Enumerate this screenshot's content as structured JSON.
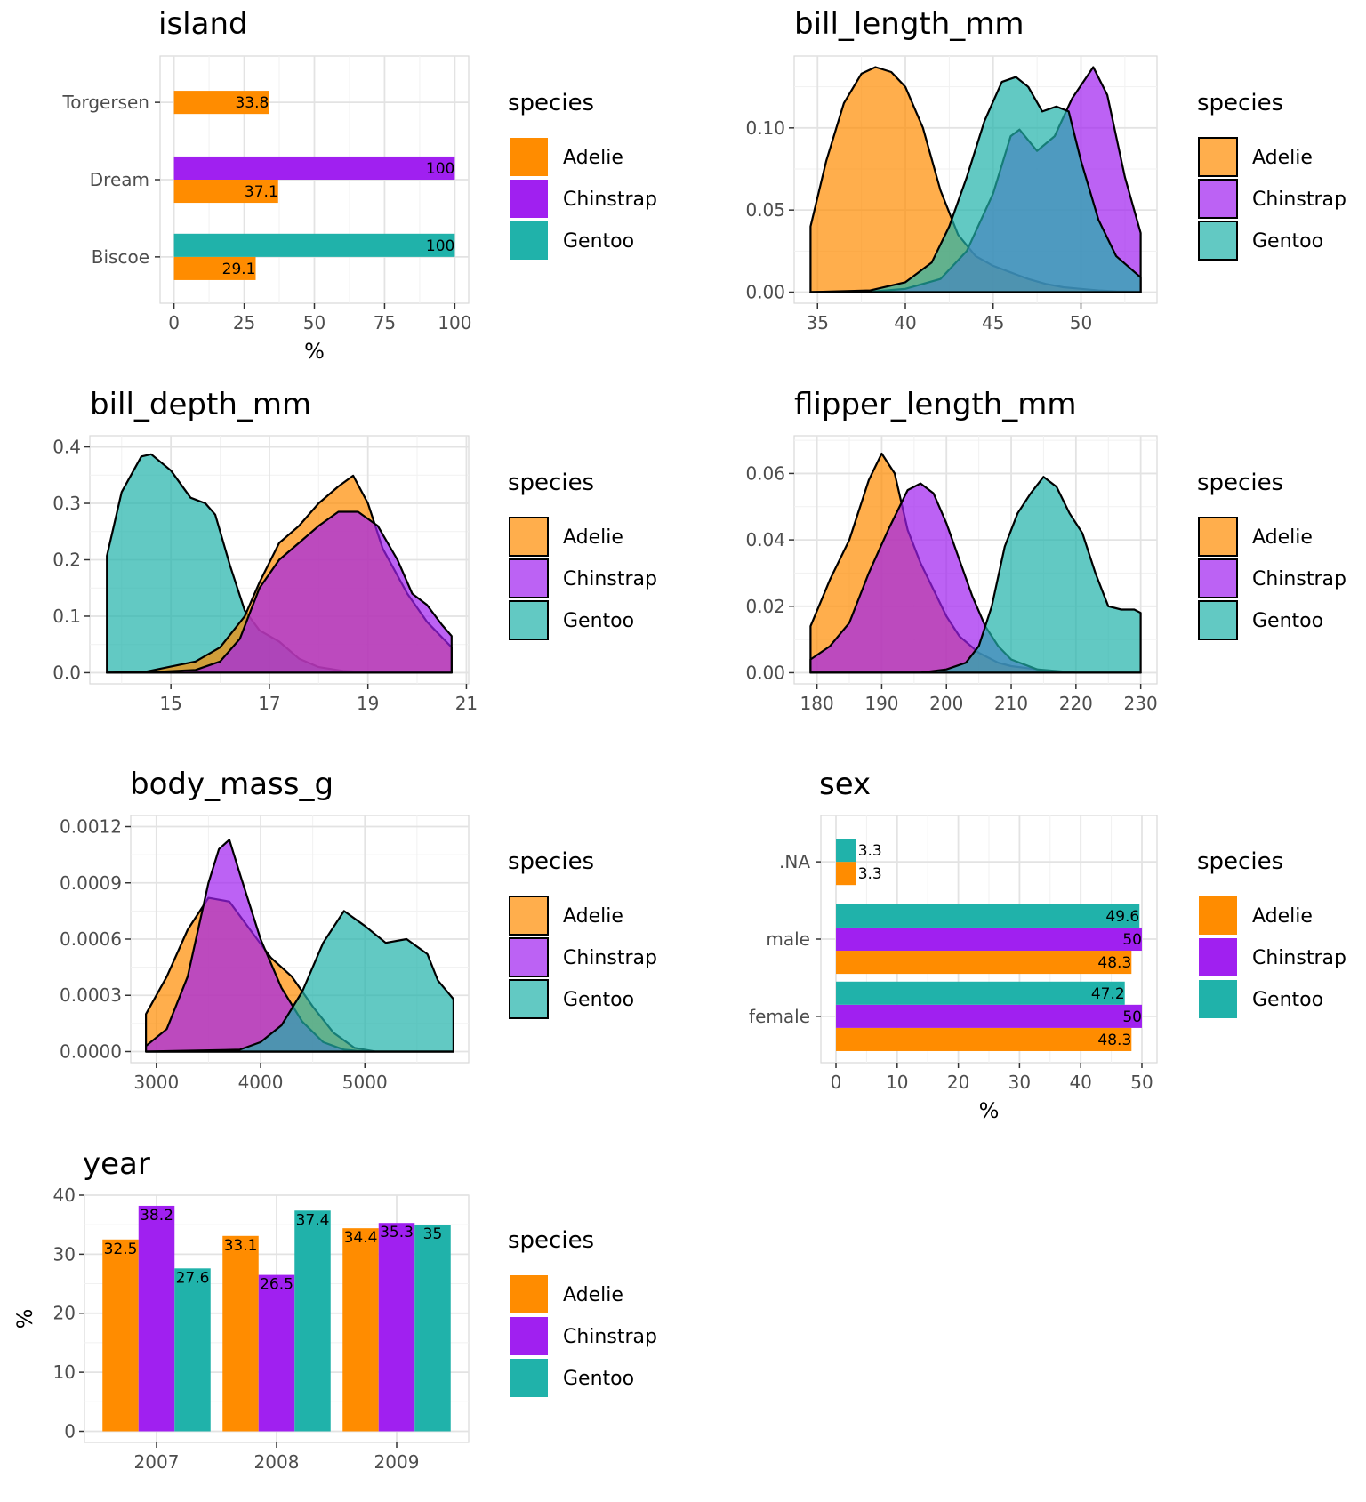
{
  "colors": {
    "Adelie": "#FF8C00",
    "Chinstrap": "#A020F0",
    "Gentoo": "#20B2AA"
  },
  "legend": {
    "title": "species",
    "entries": [
      "Adelie",
      "Chinstrap",
      "Gentoo"
    ]
  },
  "chart_data": [
    {
      "id": "island",
      "type": "bar",
      "orientation": "horizontal",
      "title": "island",
      "xlabel": "%",
      "ylabel": "",
      "categories": [
        "Biscoe",
        "Dream",
        "Torgersen"
      ],
      "series": [
        {
          "name": "Adelie",
          "values": [
            29.1,
            37.1,
            33.8
          ]
        },
        {
          "name": "Chinstrap",
          "values": [
            null,
            100,
            null
          ]
        },
        {
          "name": "Gentoo",
          "values": [
            100,
            null,
            null
          ]
        }
      ],
      "xlim": [
        0,
        100
      ],
      "xticks": [
        0,
        25,
        50,
        75,
        100
      ],
      "grid": true,
      "legend_position": "right"
    },
    {
      "id": "bill_length_mm",
      "type": "area",
      "title": "bill_length_mm",
      "xlabel": "",
      "ylabel": "",
      "xlim": [
        34.6,
        53.4
      ],
      "ylim": [
        0,
        0.137
      ],
      "xticks": [
        35,
        40,
        45,
        50
      ],
      "yticks": [
        0.0,
        0.05,
        0.1
      ],
      "ytick_labels": [
        "0.00",
        "0.05",
        "0.10"
      ],
      "series": [
        {
          "name": "Adelie",
          "x": [
            34.6,
            35.5,
            36.5,
            37.5,
            38.3,
            39.2,
            40.0,
            41.0,
            42.0,
            43.0,
            44.0,
            45.0,
            46.0,
            47.0,
            48.0,
            49.0,
            50.0,
            51.0,
            52.0,
            53.4
          ],
          "y": [
            0.04,
            0.08,
            0.115,
            0.133,
            0.137,
            0.134,
            0.125,
            0.1,
            0.062,
            0.035,
            0.022,
            0.016,
            0.012,
            0.008,
            0.005,
            0.003,
            0.002,
            0.001,
            0.0005,
            0.0002
          ]
        },
        {
          "name": "Chinstrap",
          "x": [
            34.6,
            38.0,
            40.0,
            42.0,
            43.5,
            45.0,
            46.0,
            46.5,
            47.5,
            48.5,
            49.5,
            50.7,
            51.5,
            52.5,
            53.4
          ],
          "y": [
            0.0,
            0.0002,
            0.002,
            0.008,
            0.025,
            0.06,
            0.095,
            0.099,
            0.086,
            0.095,
            0.118,
            0.137,
            0.12,
            0.07,
            0.036
          ]
        },
        {
          "name": "Gentoo",
          "x": [
            34.6,
            38.0,
            40.0,
            41.5,
            42.5,
            43.5,
            44.5,
            45.5,
            46.3,
            47.0,
            47.8,
            48.6,
            49.3,
            50.0,
            51.0,
            52.0,
            53.4
          ],
          "y": [
            0.0,
            0.001,
            0.006,
            0.018,
            0.04,
            0.07,
            0.104,
            0.128,
            0.131,
            0.125,
            0.11,
            0.113,
            0.11,
            0.08,
            0.044,
            0.022,
            0.009
          ]
        }
      ],
      "grid": true,
      "legend_position": "right"
    },
    {
      "id": "bill_depth_mm",
      "type": "area",
      "title": "bill_depth_mm",
      "xlabel": "",
      "ylabel": "",
      "xlim": [
        13.7,
        20.7
      ],
      "ylim": [
        0,
        0.4
      ],
      "xticks": [
        15,
        17,
        19,
        21
      ],
      "yticks": [
        0.0,
        0.1,
        0.2,
        0.3,
        0.4
      ],
      "ytick_labels": [
        "0.0",
        "0.1",
        "0.2",
        "0.3",
        "0.4"
      ],
      "series": [
        {
          "name": "Gentoo",
          "x": [
            13.7,
            14.0,
            14.4,
            14.6,
            15.0,
            15.4,
            15.7,
            15.9,
            16.2,
            16.5,
            16.8,
            17.2,
            17.6,
            18.0,
            18.5,
            19.0,
            20.7
          ],
          "y": [
            0.207,
            0.32,
            0.383,
            0.387,
            0.358,
            0.31,
            0.3,
            0.28,
            0.19,
            0.11,
            0.075,
            0.055,
            0.025,
            0.01,
            0.003,
            0.001,
            0.0
          ]
        },
        {
          "name": "Adelie",
          "x": [
            13.7,
            14.5,
            15.5,
            16.0,
            16.5,
            16.8,
            17.2,
            17.6,
            18.0,
            18.4,
            18.7,
            19.0,
            19.3,
            19.8,
            20.2,
            20.7
          ],
          "y": [
            0.0,
            0.002,
            0.02,
            0.045,
            0.1,
            0.16,
            0.23,
            0.26,
            0.3,
            0.33,
            0.349,
            0.3,
            0.22,
            0.14,
            0.09,
            0.045
          ]
        },
        {
          "name": "Chinstrap",
          "x": [
            13.7,
            14.5,
            15.5,
            16.0,
            16.4,
            16.8,
            17.2,
            17.6,
            18.0,
            18.4,
            18.8,
            19.2,
            19.6,
            19.9,
            20.2,
            20.5,
            20.7
          ],
          "y": [
            0.0,
            0.0005,
            0.005,
            0.02,
            0.06,
            0.15,
            0.2,
            0.23,
            0.26,
            0.285,
            0.285,
            0.26,
            0.2,
            0.14,
            0.12,
            0.085,
            0.065
          ]
        }
      ],
      "grid": true,
      "legend_position": "right"
    },
    {
      "id": "flipper_length_mm",
      "type": "area",
      "title": "flipper_length_mm",
      "xlabel": "",
      "ylabel": "",
      "xlim": [
        179,
        230
      ],
      "ylim": [
        0,
        0.068
      ],
      "xticks": [
        180,
        190,
        200,
        210,
        220,
        230
      ],
      "yticks": [
        0.0,
        0.02,
        0.04,
        0.06
      ],
      "ytick_labels": [
        "0.00",
        "0.02",
        "0.04",
        "0.06"
      ],
      "series": [
        {
          "name": "Adelie",
          "x": [
            179,
            182,
            185,
            188,
            190,
            192,
            194,
            196,
            198,
            200,
            202,
            205,
            208,
            210,
            212,
            214,
            216,
            230
          ],
          "y": [
            0.014,
            0.028,
            0.04,
            0.058,
            0.066,
            0.06,
            0.043,
            0.033,
            0.025,
            0.017,
            0.011,
            0.006,
            0.003,
            0.002,
            0.0015,
            0.001,
            0.0,
            0.0
          ]
        },
        {
          "name": "Chinstrap",
          "x": [
            179,
            182,
            185,
            188,
            191,
            194,
            196,
            198,
            200,
            202,
            204,
            206,
            208,
            210,
            214,
            220,
            230
          ],
          "y": [
            0.004,
            0.008,
            0.015,
            0.03,
            0.043,
            0.055,
            0.057,
            0.054,
            0.045,
            0.034,
            0.023,
            0.014,
            0.008,
            0.004,
            0.001,
            0.0,
            0.0
          ]
        },
        {
          "name": "Gentoo",
          "x": [
            179,
            196,
            200,
            203,
            205,
            207,
            209,
            211,
            213,
            215,
            217,
            219,
            221,
            223,
            225,
            227,
            229,
            230
          ],
          "y": [
            0.0,
            0.0,
            0.001,
            0.003,
            0.008,
            0.02,
            0.038,
            0.048,
            0.054,
            0.059,
            0.056,
            0.048,
            0.042,
            0.03,
            0.02,
            0.019,
            0.019,
            0.018
          ]
        }
      ],
      "grid": true,
      "legend_position": "right"
    },
    {
      "id": "body_mass_g",
      "type": "area",
      "title": "body_mass_g",
      "xlabel": "",
      "ylabel": "",
      "xlim": [
        2900,
        5850
      ],
      "ylim": [
        0,
        0.0012
      ],
      "xticks": [
        3000,
        4000,
        5000
      ],
      "yticks": [
        0.0,
        0.0003,
        0.0006,
        0.0009,
        0.0012
      ],
      "ytick_labels": [
        "0.0000",
        "0.0003",
        "0.0006",
        "0.0009",
        "0.0012"
      ],
      "series": [
        {
          "name": "Adelie",
          "x": [
            2900,
            3100,
            3300,
            3500,
            3700,
            3900,
            4100,
            4300,
            4500,
            4700,
            4900,
            5100,
            5850
          ],
          "y": [
            0.0002,
            0.0004,
            0.00065,
            0.00082,
            0.0008,
            0.00065,
            0.0005,
            0.0004,
            0.00024,
            0.0001,
            2e-05,
            0.0,
            0.0
          ]
        },
        {
          "name": "Chinstrap",
          "x": [
            2900,
            3100,
            3300,
            3500,
            3600,
            3700,
            3800,
            4000,
            4200,
            4400,
            4600,
            4800,
            5000,
            5850
          ],
          "y": [
            3e-05,
            0.00012,
            0.0004,
            0.0009,
            0.00108,
            0.00113,
            0.00095,
            0.0006,
            0.00034,
            0.00016,
            5e-05,
            1e-05,
            0.0,
            0.0
          ]
        },
        {
          "name": "Gentoo",
          "x": [
            2900,
            3800,
            4000,
            4200,
            4400,
            4600,
            4800,
            5000,
            5200,
            5400,
            5600,
            5700,
            5850
          ],
          "y": [
            0.0,
            1e-05,
            5e-05,
            0.00014,
            0.00032,
            0.00058,
            0.00075,
            0.00067,
            0.00058,
            0.0006,
            0.00052,
            0.00038,
            0.00028
          ]
        }
      ],
      "grid": true,
      "legend_position": "right"
    },
    {
      "id": "sex",
      "type": "bar",
      "orientation": "horizontal",
      "title": "sex",
      "xlabel": "%",
      "ylabel": "",
      "categories": [
        "female",
        "male",
        ".NA"
      ],
      "series": [
        {
          "name": "Adelie",
          "values": [
            48.3,
            48.3,
            3.3
          ]
        },
        {
          "name": "Chinstrap",
          "values": [
            50,
            50,
            null
          ]
        },
        {
          "name": "Gentoo",
          "values": [
            47.2,
            49.6,
            3.3
          ]
        }
      ],
      "xlim": [
        0,
        50
      ],
      "xticks": [
        0,
        10,
        20,
        30,
        40,
        50
      ],
      "grid": true,
      "legend_position": "right"
    },
    {
      "id": "year",
      "type": "bar",
      "orientation": "vertical",
      "title": "year",
      "xlabel": "",
      "ylabel": "%",
      "categories": [
        "2007",
        "2008",
        "2009"
      ],
      "series": [
        {
          "name": "Adelie",
          "values": [
            32.5,
            33.1,
            34.4
          ]
        },
        {
          "name": "Chinstrap",
          "values": [
            38.2,
            26.5,
            35.3
          ]
        },
        {
          "name": "Gentoo",
          "values": [
            27.6,
            37.4,
            35
          ]
        }
      ],
      "ylim": [
        0,
        40
      ],
      "yticks": [
        0,
        10,
        20,
        30,
        40
      ],
      "grid": true,
      "legend_position": "right"
    }
  ]
}
